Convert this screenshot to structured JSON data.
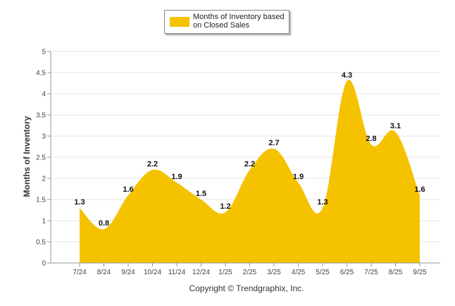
{
  "chart_data": {
    "type": "area",
    "title": "",
    "legend": {
      "label": "Months of Inventory based on Closed Sales",
      "position": "top-center"
    },
    "ylabel": "Months of Inventory",
    "xlabel": "",
    "categories": [
      "7/24",
      "8/24",
      "9/24",
      "10/24",
      "11/24",
      "12/24",
      "1/25",
      "2/25",
      "3/25",
      "4/25",
      "5/25",
      "6/25",
      "7/25",
      "8/25",
      "9/25"
    ],
    "values": [
      1.3,
      0.8,
      1.6,
      2.2,
      1.9,
      1.5,
      1.2,
      2.2,
      2.7,
      1.9,
      1.3,
      4.3,
      2.8,
      3.1,
      1.6
    ],
    "data_labels": [
      "1.3",
      "0.8",
      "1.6",
      "2.2",
      "1.9",
      "1.5",
      "1.2",
      "2.2",
      "2.7",
      "1.9",
      "1.3",
      "4.3",
      "2.8",
      "3.1",
      "1.6"
    ],
    "ylim": [
      0,
      5
    ],
    "yticks": [
      0,
      0.5,
      1,
      1.5,
      2,
      2.5,
      3,
      3.5,
      4,
      4.5,
      5
    ],
    "ytick_labels": [
      "0",
      "0.5",
      "1",
      "1.5",
      "2",
      "2.5",
      "3",
      "3.5",
      "4",
      "4.5",
      "5"
    ],
    "grid": true,
    "colors": {
      "fill": "#f5c200",
      "grid": "#e6e6e6",
      "axis": "#999999"
    }
  },
  "footer": {
    "copyright": "Copyright © Trendgraphix, Inc."
  }
}
